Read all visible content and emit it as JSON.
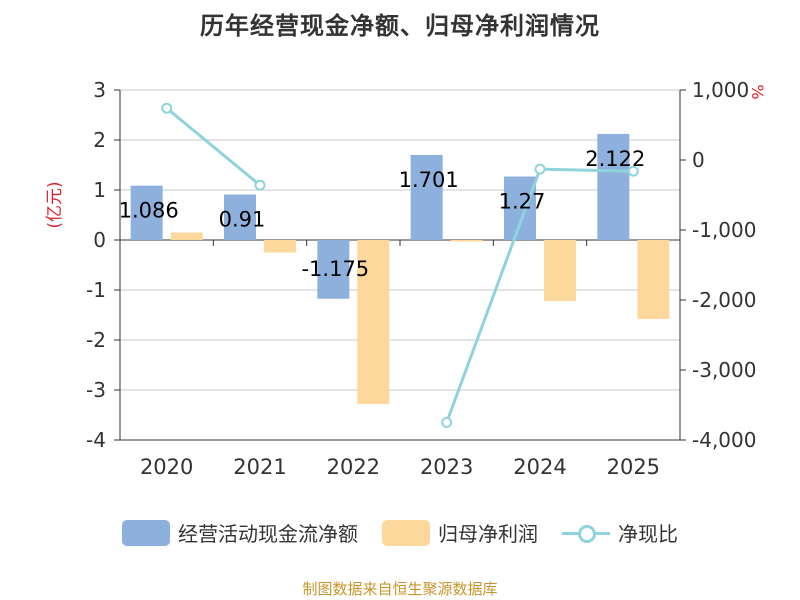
{
  "chart_data": {
    "type": "bar+line",
    "title": "历年经营现金净额、归母净利润情况",
    "categories": [
      "2020",
      "2021",
      "2022",
      "2023",
      "2024",
      "2025"
    ],
    "left_axis": {
      "label": "(亿元)",
      "ylim": [
        -4,
        3
      ],
      "ticks": [
        "3",
        "2",
        "1",
        "0",
        "-1",
        "-2",
        "-3",
        "-4"
      ],
      "tick_values": [
        3,
        2,
        1,
        0,
        -1,
        -2,
        -3,
        -4
      ]
    },
    "right_axis": {
      "label": "%",
      "ylim": [
        -4000,
        1000
      ],
      "ticks": [
        "1,000",
        "0",
        "-1,000",
        "-2,000",
        "-3,000",
        "-4,000"
      ],
      "tick_values": [
        1000,
        0,
        -1000,
        -2000,
        -3000,
        -4000
      ]
    },
    "series": [
      {
        "name": "经营活动现金流净额",
        "type": "bar",
        "axis": "left",
        "color": "#8eb0dc",
        "values": [
          1.086,
          0.91,
          -1.175,
          1.701,
          1.27,
          2.122
        ],
        "labels": [
          "1.086",
          "0.91",
          "-1.175",
          "1.701",
          "1.27",
          "2.122"
        ]
      },
      {
        "name": "归母净利润",
        "type": "bar",
        "axis": "left",
        "color": "#fdd89c",
        "values": [
          0.15,
          -0.25,
          -3.28,
          -0.03,
          -1.22,
          -1.58
        ]
      },
      {
        "name": "净现比",
        "type": "line",
        "axis": "right",
        "color": "#8fd3dd",
        "values": [
          740,
          -360,
          null,
          -3750,
          -130,
          -160
        ]
      }
    ],
    "source": "制图数据来自恒生聚源数据库",
    "colors": {
      "title": "#333333",
      "axis_label_left": "#d9232d",
      "axis_label_right": "#d9232d",
      "source": "#c8952c",
      "grid": "#c8c8c8"
    }
  }
}
